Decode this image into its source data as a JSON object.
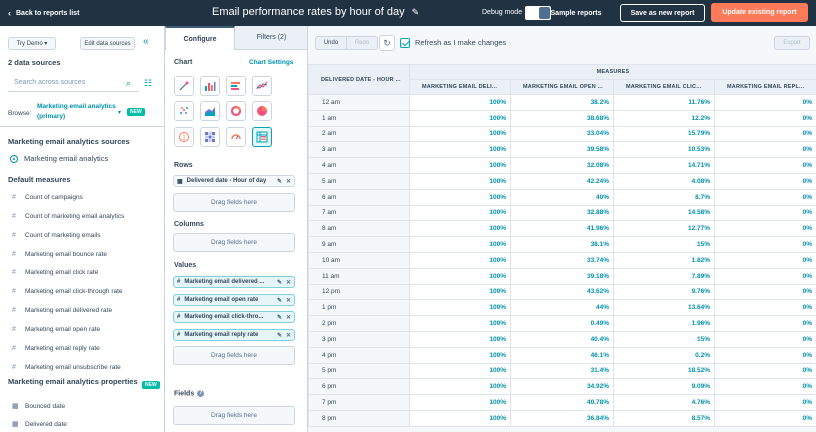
{
  "topbar": {
    "back_label": "Back to reports list",
    "title": "Email performance rates by hour of day",
    "debug_label": "Debug mode",
    "sample_reports": "Sample reports",
    "save_as_new": "Save as new report",
    "update_existing": "Update existing report"
  },
  "left": {
    "try_demo": "Try Demo",
    "edit_sources": "Edit data sources",
    "data_sources_count": "2 data sources",
    "search_placeholder": "Search across sources",
    "browse_label": "Browse:",
    "browse_value": "Marketing email analytics (primary)",
    "new_badge": "NEW",
    "sources_title": "Marketing email analytics sources",
    "source_item": "Marketing email analytics",
    "default_measures_title": "Default measures",
    "measures": [
      "Count of campaigns",
      "Count of marketing email analytics",
      "Count of marketing emails",
      "Marketing email bounce rate",
      "Marketing email click rate",
      "Marketing email click-through rate",
      "Marketing email delivered rate",
      "Marketing email open rate",
      "Marketing email reply rate",
      "Marketing email unsubscribe rate"
    ],
    "properties_title": "Marketing email analytics properties",
    "properties_new_badge": "NEW",
    "properties": [
      "Bounced date",
      "Delivered date"
    ]
  },
  "config": {
    "tab_configure": "Configure",
    "tab_filters": "Filters (2)",
    "chart_label": "Chart",
    "chart_settings": "Chart Settings",
    "rows_label": "Rows",
    "rows_field": "Delivered date - Hour of day",
    "drag_fields": "Drag fields here",
    "columns_label": "Columns",
    "values_label": "Values",
    "values_fields": [
      "Marketing email delivered ...",
      "Marketing email open rate",
      "Marketing email click-thro...",
      "Marketing email reply rate"
    ],
    "fields_label": "Fields"
  },
  "main": {
    "undo": "Undo",
    "redo": "Redo",
    "refresh_label": "Refresh as I make changes",
    "export": "Export"
  },
  "table": {
    "row_header": "DELIVERED DATE - HOUR ...",
    "group_header": "MEASURES",
    "columns": [
      "MARKETING EMAIL DELI...",
      "MARKETING EMAIL OPEN ...",
      "MARKETING EMAIL CLIC...",
      "MARKETING EMAIL REPL..."
    ],
    "rows": [
      [
        "12 am",
        "100%",
        "38.2%",
        "11.76%",
        "0%"
      ],
      [
        "1 am",
        "100%",
        "38.68%",
        "12.2%",
        "0%"
      ],
      [
        "2 am",
        "100%",
        "33.04%",
        "15.79%",
        "0%"
      ],
      [
        "3 am",
        "100%",
        "39.58%",
        "10.53%",
        "0%"
      ],
      [
        "4 am",
        "100%",
        "32.08%",
        "14.71%",
        "0%"
      ],
      [
        "5 am",
        "100%",
        "42.24%",
        "4.08%",
        "0%"
      ],
      [
        "6 am",
        "100%",
        "40%",
        "8.7%",
        "0%"
      ],
      [
        "7 am",
        "100%",
        "32.88%",
        "14.58%",
        "0%"
      ],
      [
        "8 am",
        "100%",
        "41.96%",
        "12.77%",
        "0%"
      ],
      [
        "9 am",
        "100%",
        "38.1%",
        "15%",
        "0%"
      ],
      [
        "10 am",
        "100%",
        "33.74%",
        "1.82%",
        "0%"
      ],
      [
        "11 am",
        "100%",
        "39.18%",
        "7.89%",
        "0%"
      ],
      [
        "12 pm",
        "100%",
        "43.62%",
        "9.76%",
        "0%"
      ],
      [
        "1 pm",
        "100%",
        "44%",
        "13.64%",
        "0%"
      ],
      [
        "2 pm",
        "100%",
        "0.49%",
        "1.96%",
        "0%"
      ],
      [
        "3 pm",
        "100%",
        "40.4%",
        "15%",
        "0%"
      ],
      [
        "4 pm",
        "100%",
        "46.1%",
        "0.2%",
        "0%"
      ],
      [
        "5 pm",
        "100%",
        "31.4%",
        "18.52%",
        "0%"
      ],
      [
        "6 pm",
        "100%",
        "34.92%",
        "9.09%",
        "0%"
      ],
      [
        "7 pm",
        "100%",
        "40.78%",
        "4.76%",
        "0%"
      ],
      [
        "8 pm",
        "100%",
        "36.84%",
        "8.57%",
        "0%"
      ]
    ]
  },
  "colors": {
    "topbar": "#213343",
    "accent_orange": "#ff7a59",
    "link_teal": "#0091ae",
    "badge_green": "#00bda5"
  }
}
